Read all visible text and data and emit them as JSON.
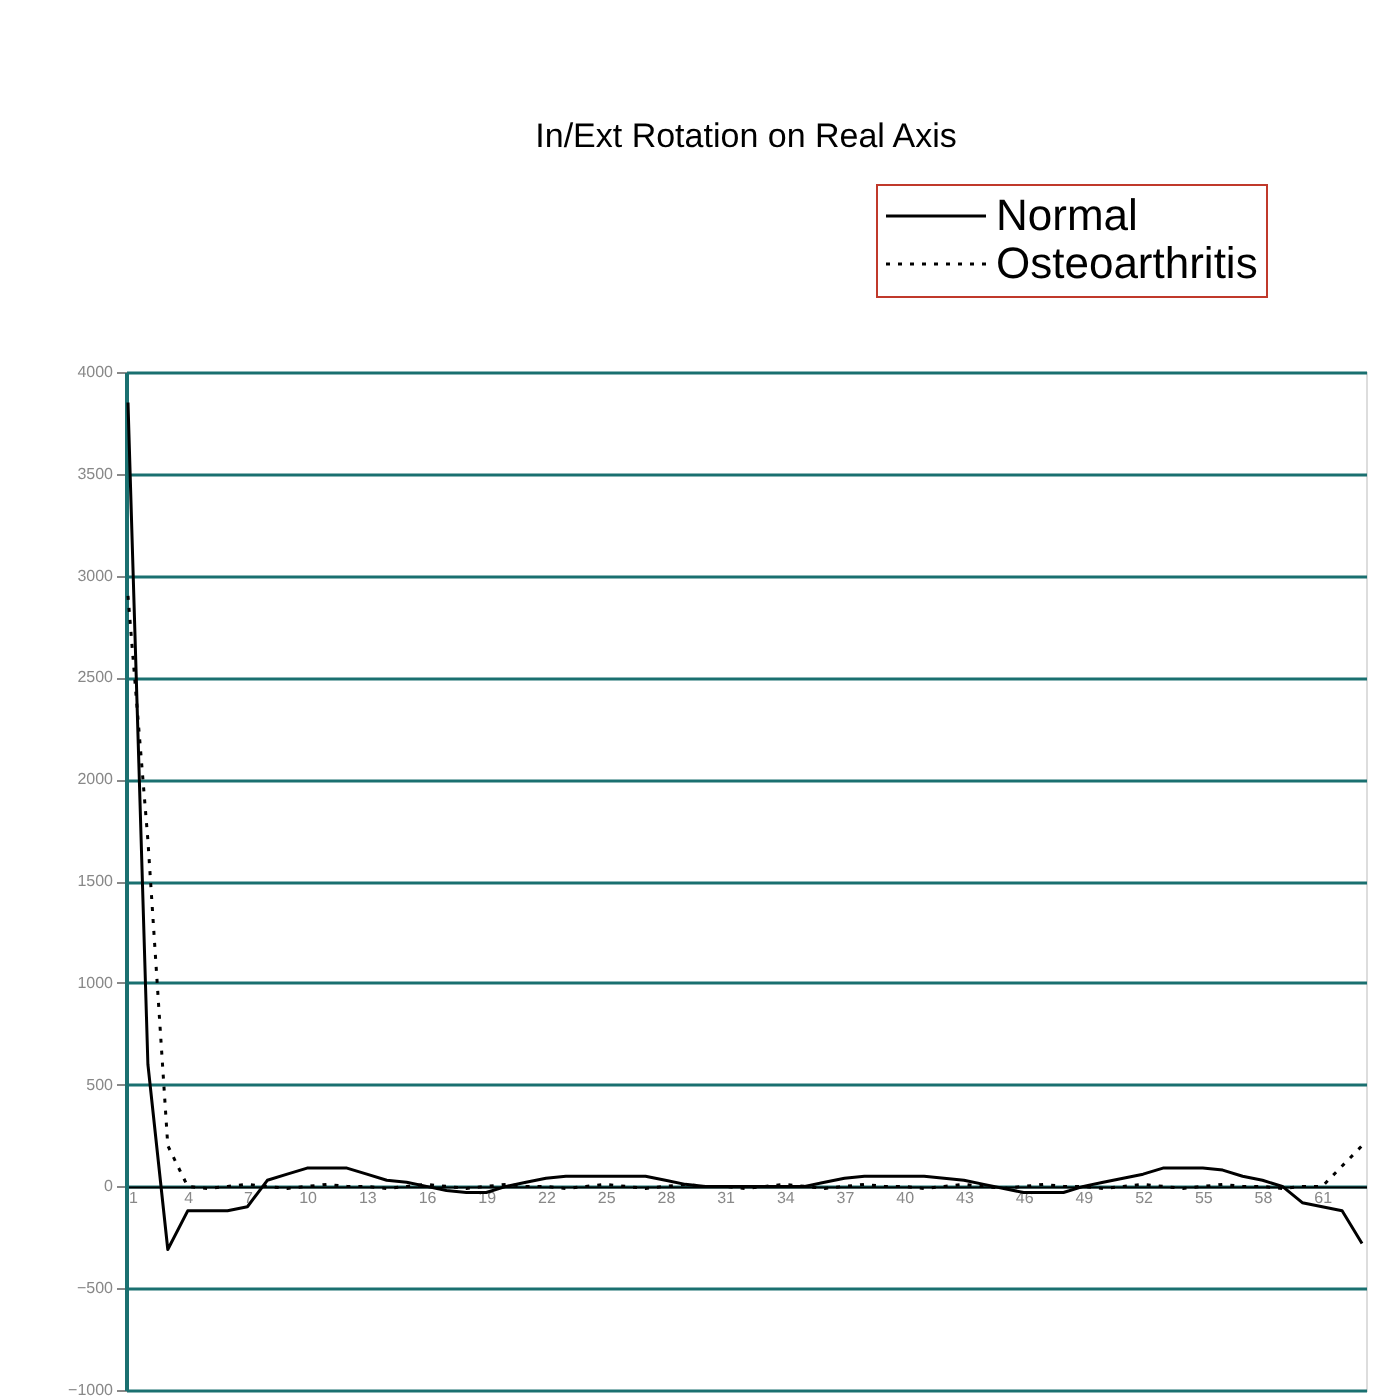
{
  "chart_data": {
    "type": "line",
    "title": "In/Ext Rotation on Real Axis",
    "x": [
      1,
      2,
      3,
      4,
      5,
      6,
      7,
      8,
      9,
      10,
      11,
      12,
      13,
      14,
      15,
      16,
      17,
      18,
      19,
      20,
      21,
      22,
      23,
      24,
      25,
      26,
      27,
      28,
      29,
      30,
      31,
      32,
      33,
      34,
      35,
      36,
      37,
      38,
      39,
      40,
      41,
      42,
      43,
      44,
      45,
      46,
      47,
      48,
      49,
      50,
      51,
      52,
      53,
      54,
      55,
      56,
      57,
      58,
      59,
      60,
      61,
      62,
      63
    ],
    "series": [
      {
        "name": "Normal",
        "color": "#000000",
        "line_style": "solid",
        "values": [
          3850,
          600,
          -310,
          -120,
          -120,
          -120,
          -100,
          30,
          60,
          90,
          90,
          90,
          60,
          30,
          20,
          0,
          -20,
          -30,
          -30,
          0,
          20,
          40,
          50,
          50,
          50,
          50,
          50,
          30,
          10,
          0,
          0,
          0,
          0,
          0,
          0,
          20,
          40,
          50,
          50,
          50,
          50,
          40,
          30,
          10,
          -10,
          -30,
          -30,
          -30,
          0,
          20,
          40,
          60,
          90,
          90,
          90,
          80,
          50,
          30,
          0,
          -80,
          -100,
          -120,
          -280
        ]
      },
      {
        "name": "Osteoarthritis",
        "color": "#000000",
        "line_style": "dotted",
        "values": [
          2900,
          1700,
          200,
          0,
          -10,
          0,
          10,
          0,
          -10,
          0,
          10,
          0,
          0,
          -10,
          0,
          10,
          0,
          -10,
          0,
          10,
          0,
          0,
          -10,
          0,
          10,
          0,
          -10,
          0,
          10,
          0,
          0,
          -10,
          0,
          10,
          0,
          -10,
          0,
          10,
          0,
          0,
          -10,
          0,
          10,
          0,
          -10,
          0,
          10,
          0,
          0,
          -10,
          0,
          10,
          0,
          -10,
          0,
          10,
          0,
          0,
          -10,
          0,
          0,
          100,
          200
        ]
      }
    ],
    "xlim": [
      0.9,
      63.2
    ],
    "xticks": [
      1,
      4,
      7,
      10,
      13,
      16,
      19,
      22,
      25,
      28,
      31,
      34,
      37,
      40,
      43,
      46,
      49,
      52,
      55,
      58,
      61
    ],
    "ylim": [
      -1000,
      4000
    ],
    "yticks": [
      -1000,
      -500,
      0,
      500,
      1000,
      1500,
      2000,
      2500,
      3000,
      3500,
      4000
    ],
    "grid": "y",
    "legend": "top right",
    "marker": "none"
  }
}
